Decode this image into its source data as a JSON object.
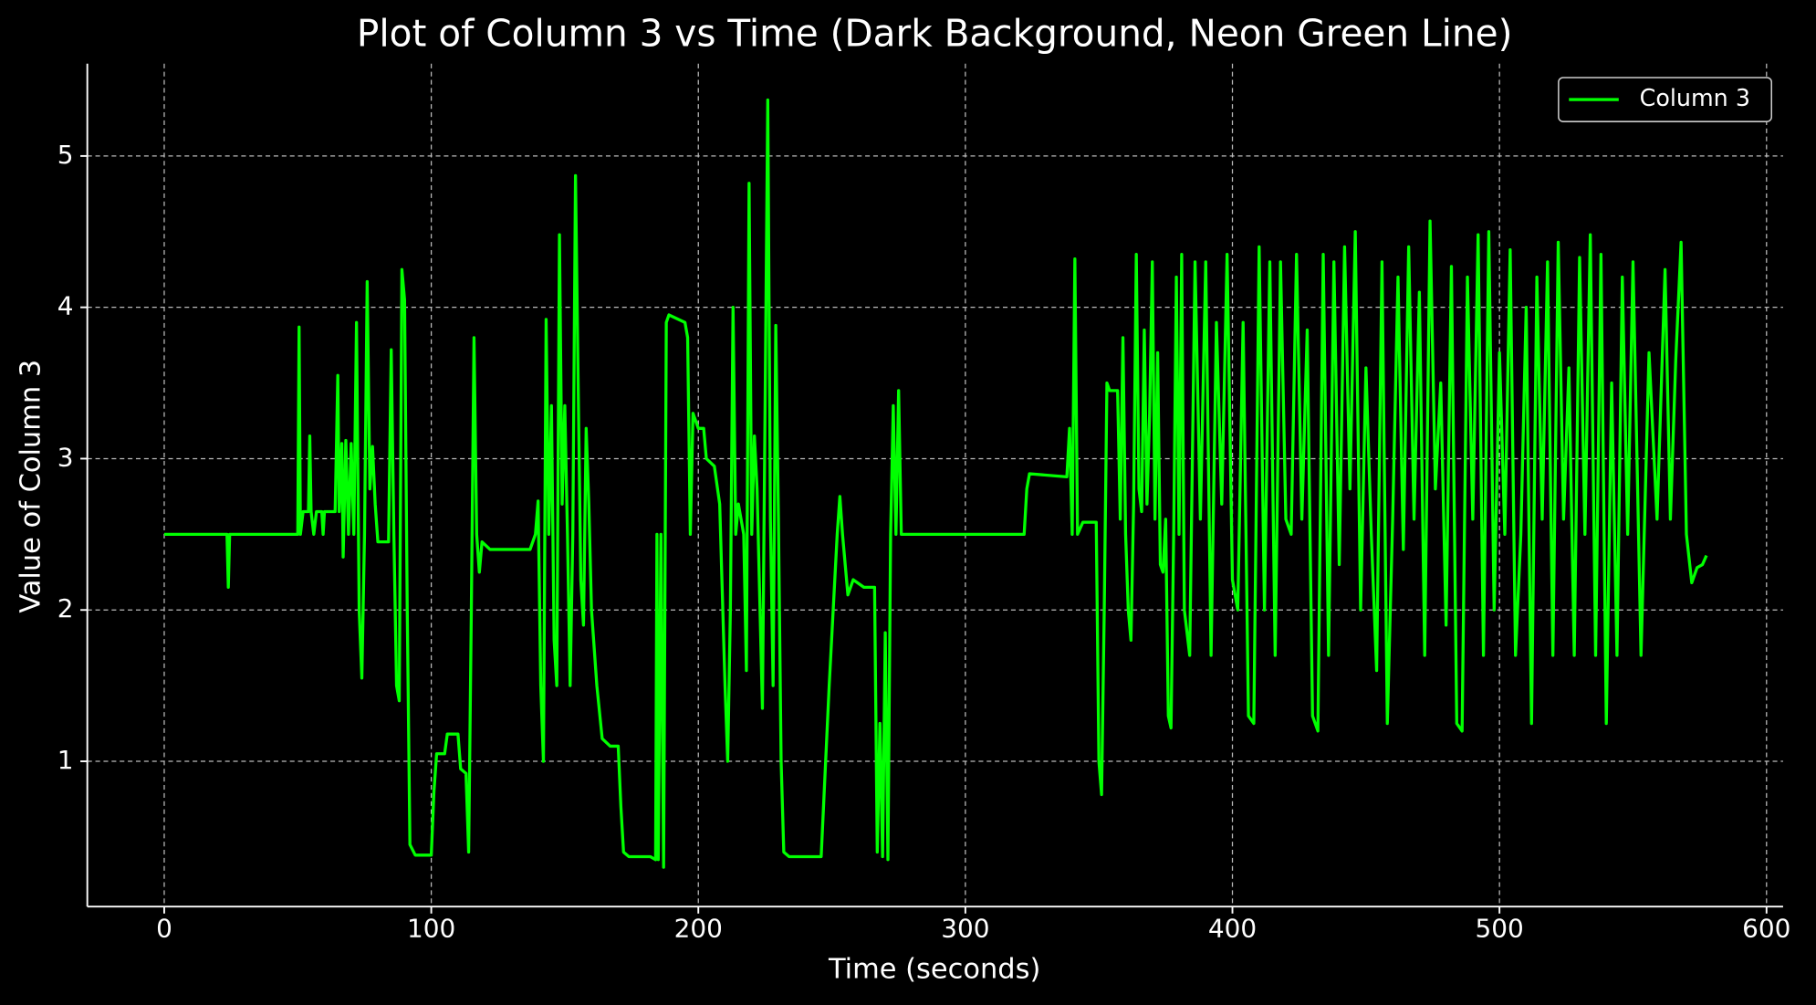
{
  "chart_data": {
    "type": "line",
    "title": "Plot of Column 3 vs Time (Dark Background, Neon Green Line)",
    "x_label": "Time (seconds)",
    "y_label": "Value of Column 3",
    "legend": "upper right",
    "grid": true,
    "xlim": [
      -28.8,
      606.2
    ],
    "ylim": [
      0.04,
      5.61
    ],
    "xticks": [
      0,
      100,
      200,
      300,
      400,
      500,
      600
    ],
    "yticks": [
      1,
      2,
      3,
      4,
      5
    ],
    "x": [
      0,
      23.5,
      24,
      24.5,
      50,
      50.5,
      51,
      52,
      54,
      54.5,
      55,
      56,
      57,
      59,
      59.5,
      60,
      64,
      65,
      65.5,
      66.5,
      67,
      68,
      69,
      70,
      71,
      72,
      73,
      74,
      75,
      76,
      77,
      78,
      79,
      80,
      84,
      85,
      86,
      87,
      88,
      89,
      90,
      91,
      92,
      94,
      100,
      101,
      102,
      105,
      106,
      110,
      111,
      113,
      114,
      115,
      116,
      117,
      118,
      119,
      122,
      137,
      139,
      140,
      141,
      142,
      143,
      144,
      145,
      146,
      147,
      148,
      149,
      150,
      151,
      152,
      153,
      154,
      155,
      156,
      157,
      158,
      159,
      160,
      162,
      164,
      167,
      170,
      171,
      172,
      174,
      182,
      184,
      184.5,
      185,
      186,
      187,
      188,
      189,
      195,
      196,
      197,
      198,
      200,
      202,
      203,
      206,
      208,
      210,
      211,
      212,
      213,
      214,
      215,
      217,
      218,
      219,
      220,
      221,
      222,
      224,
      226,
      227,
      228,
      229,
      230,
      231,
      232,
      234,
      246,
      249,
      252,
      253,
      254,
      256,
      258,
      262,
      266,
      267,
      268,
      269,
      270,
      271,
      272,
      273,
      274,
      275,
      276,
      322,
      323,
      324,
      338,
      339,
      340,
      341,
      342,
      344,
      349,
      350,
      351,
      352,
      353,
      354,
      357,
      358,
      359,
      360,
      361,
      362,
      363,
      364,
      365,
      366,
      367,
      368,
      369,
      370,
      371,
      372,
      373,
      374,
      375,
      376,
      377,
      378,
      379,
      380,
      381,
      382,
      384,
      386,
      388,
      390,
      392,
      394,
      396,
      398,
      400,
      402,
      404,
      406,
      408,
      410,
      412,
      414,
      416,
      418,
      420,
      422,
      424,
      426,
      428,
      430,
      432,
      434,
      436,
      438,
      440,
      442,
      444,
      446,
      448,
      450,
      452,
      454,
      456,
      458,
      460,
      462,
      464,
      466,
      468,
      470,
      472,
      474,
      476,
      478,
      480,
      482,
      484,
      486,
      488,
      490,
      492,
      494,
      496,
      498,
      500,
      502,
      504,
      506,
      508,
      510,
      512,
      514,
      516,
      518,
      520,
      522,
      524,
      526,
      528,
      530,
      532,
      534,
      536,
      538,
      540,
      542,
      544,
      546,
      548,
      550,
      553,
      556,
      559,
      562,
      564,
      566,
      568,
      570,
      572,
      574,
      576,
      577.5
    ],
    "series": [
      {
        "name": "Column 3",
        "color": "#00ff00",
        "values": [
          2.5,
          2.5,
          2.15,
          2.5,
          2.5,
          3.87,
          2.5,
          2.65,
          2.65,
          3.15,
          2.65,
          2.5,
          2.65,
          2.65,
          2.5,
          2.65,
          2.65,
          3.55,
          2.65,
          3.1,
          2.35,
          3.12,
          2.5,
          3.1,
          2.5,
          3.9,
          2.0,
          1.55,
          2.5,
          4.17,
          2.8,
          3.08,
          2.7,
          2.45,
          2.45,
          3.72,
          2.5,
          1.5,
          1.4,
          4.25,
          4.05,
          2.0,
          0.45,
          0.38,
          0.38,
          0.8,
          1.05,
          1.05,
          1.18,
          1.18,
          0.95,
          0.92,
          0.4,
          2.0,
          3.8,
          2.5,
          2.25,
          2.45,
          2.4,
          2.4,
          2.5,
          2.72,
          1.5,
          1.0,
          3.92,
          2.5,
          3.35,
          1.8,
          1.5,
          4.48,
          2.7,
          3.35,
          2.5,
          1.5,
          2.5,
          4.87,
          3.5,
          2.2,
          1.9,
          3.2,
          2.7,
          2.0,
          1.5,
          1.15,
          1.1,
          1.1,
          0.7,
          0.4,
          0.37,
          0.37,
          0.35,
          2.5,
          0.35,
          2.5,
          0.3,
          3.9,
          3.95,
          3.9,
          3.8,
          2.5,
          3.3,
          3.2,
          3.2,
          3.0,
          2.95,
          2.7,
          1.5,
          1.0,
          2.0,
          4.0,
          2.5,
          2.7,
          2.5,
          1.6,
          4.82,
          2.5,
          3.15,
          2.8,
          1.35,
          5.37,
          2.6,
          1.5,
          3.88,
          2.6,
          1.0,
          0.4,
          0.37,
          0.37,
          1.5,
          2.5,
          2.75,
          2.5,
          2.1,
          2.2,
          2.15,
          2.15,
          0.4,
          1.25,
          0.37,
          1.85,
          0.35,
          2.5,
          3.35,
          2.5,
          3.45,
          2.5,
          2.5,
          2.8,
          2.9,
          2.88,
          3.2,
          2.5,
          4.32,
          2.5,
          2.58,
          2.58,
          1.0,
          0.78,
          2.0,
          3.5,
          3.45,
          3.45,
          2.6,
          3.8,
          2.5,
          2.0,
          1.8,
          2.7,
          4.35,
          2.8,
          2.65,
          3.85,
          2.7,
          3.3,
          4.3,
          2.6,
          3.7,
          2.3,
          2.25,
          2.6,
          1.3,
          1.22,
          2.5,
          4.2,
          2.5,
          4.35,
          2.0,
          1.7,
          4.3,
          2.6,
          4.3,
          1.7,
          3.9,
          2.7,
          4.35,
          2.2,
          2.0,
          3.9,
          1.3,
          1.25,
          4.4,
          2.0,
          4.3,
          1.7,
          4.3,
          2.6,
          2.5,
          4.35,
          2.6,
          3.85,
          1.3,
          1.2,
          4.35,
          1.7,
          4.3,
          2.3,
          4.4,
          2.8,
          4.5,
          2.0,
          3.6,
          2.5,
          1.6,
          4.3,
          1.25,
          2.6,
          4.2,
          2.4,
          4.4,
          2.6,
          4.1,
          1.7,
          4.57,
          2.8,
          3.5,
          1.9,
          4.27,
          1.25,
          1.2,
          4.2,
          2.6,
          4.48,
          1.7,
          4.5,
          2.0,
          3.7,
          2.5,
          4.38,
          1.7,
          2.5,
          4.0,
          1.25,
          4.2,
          2.6,
          4.3,
          1.7,
          4.43,
          2.6,
          3.6,
          1.7,
          4.33,
          2.5,
          4.48,
          1.7,
          4.35,
          1.25,
          3.5,
          1.7,
          4.2,
          2.5,
          4.3,
          1.7,
          3.7,
          2.6,
          4.25,
          2.6,
          3.65,
          4.43,
          2.5,
          2.18,
          2.28,
          2.3,
          2.36
        ]
      }
    ]
  }
}
